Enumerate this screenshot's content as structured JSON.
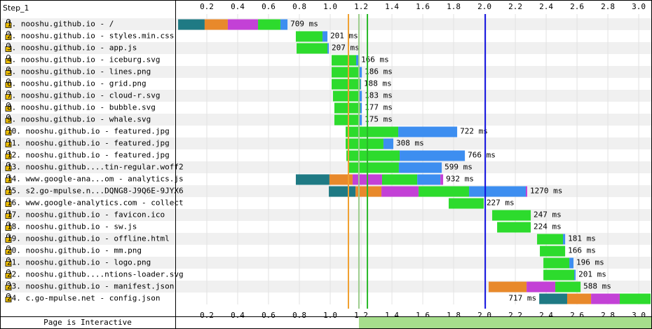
{
  "chart_data": {
    "type": "waterfall",
    "title": "Step_1",
    "xlim": [
      0,
      3.086
    ],
    "xticks": [
      0.2,
      0.4,
      0.6,
      0.8,
      {
        "value": 1,
        "label": "1.0"
      },
      1.2,
      1.4,
      1.6,
      1.8,
      {
        "value": 2,
        "label": "2.0"
      },
      2.2,
      2.4,
      2.6,
      2.8,
      {
        "value": 3,
        "label": "3.0"
      }
    ],
    "grid": true,
    "rows": [
      {
        "label": "1. nooshu.github.io - /",
        "segments": [
          {
            "start": 0.014,
            "end": 0.186,
            "color": "#1f7a84"
          },
          {
            "start": 0.186,
            "end": 0.336,
            "color": "#e8892b"
          },
          {
            "start": 0.336,
            "end": 0.532,
            "color": "#c341d6"
          },
          {
            "start": 0.532,
            "end": 0.677,
            "color": "#2ddb2d"
          },
          {
            "start": 0.677,
            "end": 0.723,
            "color": "#3d8ef0"
          }
        ]
      },
      {
        "label": "2. nooshu.github.io - styles.min.css",
        "segments": [
          {
            "start": 0.777,
            "end": 0.95,
            "color": "#2ddb2d"
          },
          {
            "start": 0.95,
            "end": 0.982,
            "color": "#3d8ef0"
          }
        ]
      },
      {
        "label": "3. nooshu.github.io - app.js",
        "segments": [
          {
            "start": 0.782,
            "end": 0.982,
            "color": "#2ddb2d"
          },
          {
            "start": 0.982,
            "end": 0.991,
            "color": "#3d8ef0"
          }
        ]
      },
      {
        "label": "4. nooshu.github.io - iceburg.svg",
        "segments": [
          {
            "start": 1.009,
            "end": 1.168,
            "color": "#2ddb2d"
          },
          {
            "start": 1.168,
            "end": 1.182,
            "color": "#3d8ef0"
          }
        ]
      },
      {
        "label": "5. nooshu.github.io - lines.png",
        "segments": [
          {
            "start": 1.009,
            "end": 1.182,
            "color": "#2ddb2d"
          },
          {
            "start": 1.182,
            "end": 1.205,
            "color": "#3d8ef0"
          }
        ]
      },
      {
        "label": "6. nooshu.github.io - grid.png",
        "segments": [
          {
            "start": 1.009,
            "end": 1.195,
            "color": "#2ddb2d"
          },
          {
            "start": 1.195,
            "end": 1.2,
            "color": "#3d8ef0"
          }
        ]
      },
      {
        "label": "7. nooshu.github.io - cloud-r.svg",
        "segments": [
          {
            "start": 1.018,
            "end": 1.186,
            "color": "#2ddb2d"
          },
          {
            "start": 1.186,
            "end": 1.205,
            "color": "#3d8ef0"
          }
        ]
      },
      {
        "label": "8. nooshu.github.io - bubble.svg",
        "segments": [
          {
            "start": 1.027,
            "end": 1.195,
            "color": "#2ddb2d"
          },
          {
            "start": 1.195,
            "end": 1.205,
            "color": "#3d8ef0"
          }
        ]
      },
      {
        "label": "9. nooshu.github.io - whale.svg",
        "segments": [
          {
            "start": 1.027,
            "end": 1.191,
            "color": "#2ddb2d"
          },
          {
            "start": 1.191,
            "end": 1.205,
            "color": "#3d8ef0"
          }
        ]
      },
      {
        "label": "10. nooshu.github.io - featured.jpg",
        "segments": [
          {
            "start": 1.1,
            "end": 1.441,
            "color": "#2ddb2d"
          },
          {
            "start": 1.441,
            "end": 1.823,
            "color": "#3d8ef0"
          }
        ]
      },
      {
        "label": "11. nooshu.github.io - featured.jpg",
        "segments": [
          {
            "start": 1.1,
            "end": 1.345,
            "color": "#2ddb2d"
          },
          {
            "start": 1.345,
            "end": 1.409,
            "color": "#3d8ef0"
          }
        ]
      },
      {
        "label": "12. nooshu.github.io - featured.jpg",
        "segments": [
          {
            "start": 1.105,
            "end": 1.45,
            "color": "#2ddb2d"
          },
          {
            "start": 1.45,
            "end": 1.873,
            "color": "#3d8ef0"
          }
        ]
      },
      {
        "label": "13. nooshu.github....tin-regular.woff2",
        "segments": [
          {
            "start": 1.118,
            "end": 1.445,
            "color": "#2ddb2d"
          },
          {
            "start": 1.445,
            "end": 1.723,
            "color": "#3d8ef0"
          }
        ]
      },
      {
        "label": "14. www.google-ana...om - analytics.js",
        "segments": [
          {
            "start": 0.777,
            "end": 0.995,
            "color": "#1f7a84"
          },
          {
            "start": 0.995,
            "end": 1.145,
            "color": "#e8892b"
          },
          {
            "start": 1.145,
            "end": 1.336,
            "color": "#c341d6"
          },
          {
            "start": 1.336,
            "end": 1.564,
            "color": "#2ddb2d"
          },
          {
            "start": 1.564,
            "end": 1.714,
            "color": "#3d8ef0"
          },
          {
            "start": 1.714,
            "end": 1.732,
            "color": "#c341d6"
          }
        ]
      },
      {
        "label": "15. s2.go-mpulse.n...DQNG8-J9Q6E-9JYX6",
        "segments": [
          {
            "start": 0.991,
            "end": 1.164,
            "color": "#1f7a84"
          },
          {
            "start": 1.164,
            "end": 1.332,
            "color": "#e8892b"
          },
          {
            "start": 1.332,
            "end": 1.573,
            "color": "#c341d6"
          },
          {
            "start": 1.573,
            "end": 1.9,
            "color": "#2ddb2d"
          },
          {
            "start": 1.9,
            "end": 2.268,
            "color": "#3d8ef0"
          },
          {
            "start": 2.268,
            "end": 2.277,
            "color": "#c341d6"
          }
        ]
      },
      {
        "label": "16. www.google-analytics.com - collect",
        "segments": [
          {
            "start": 1.768,
            "end": 1.995,
            "color": "#2ddb2d"
          }
        ]
      },
      {
        "label": "17. nooshu.github.io - favicon.ico",
        "segments": [
          {
            "start": 2.05,
            "end": 2.3,
            "color": "#2ddb2d"
          }
        ]
      },
      {
        "label": "18. nooshu.github.io - sw.js",
        "segments": [
          {
            "start": 2.082,
            "end": 2.3,
            "color": "#2ddb2d"
          }
        ]
      },
      {
        "label": "19. nooshu.github.io - offline.html",
        "segments": [
          {
            "start": 2.341,
            "end": 2.509,
            "color": "#2ddb2d"
          },
          {
            "start": 2.509,
            "end": 2.523,
            "color": "#3d8ef0"
          }
        ]
      },
      {
        "label": "20. nooshu.github.io - mm.png",
        "segments": [
          {
            "start": 2.359,
            "end": 2.523,
            "color": "#2ddb2d"
          }
        ]
      },
      {
        "label": "21. nooshu.github.io - logo.png",
        "segments": [
          {
            "start": 2.382,
            "end": 2.55,
            "color": "#2ddb2d"
          },
          {
            "start": 2.55,
            "end": 2.577,
            "color": "#3d8ef0"
          }
        ]
      },
      {
        "label": "22. nooshu.github....ntions-loader.svg",
        "segments": [
          {
            "start": 2.382,
            "end": 2.582,
            "color": "#2ddb2d"
          },
          {
            "start": 2.582,
            "end": 2.591,
            "color": "#3d8ef0"
          }
        ]
      },
      {
        "label": "23. nooshu.github.io - manifest.json",
        "segments": [
          {
            "start": 2.027,
            "end": 2.273,
            "color": "#e8892b"
          },
          {
            "start": 2.273,
            "end": 2.459,
            "color": "#c341d6"
          },
          {
            "start": 2.459,
            "end": 2.623,
            "color": "#2ddb2d"
          }
        ]
      },
      {
        "label": "24. c.go-mpulse.net - config.json",
        "segments": [
          {
            "start": 2.355,
            "end": 2.536,
            "color": "#1f7a84"
          },
          {
            "start": 2.536,
            "end": 2.691,
            "color": "#e8892b"
          },
          {
            "start": 2.691,
            "end": 2.877,
            "color": "#c341d6"
          },
          {
            "start": 2.877,
            "end": 3.077,
            "color": "#2ddb2d"
          }
        ]
      }
    ],
    "values": [
      709,
      201,
      207,
      166,
      186,
      188,
      183,
      177,
      175,
      722,
      308,
      766,
      599,
      932,
      1270,
      227,
      247,
      224,
      181,
      166,
      196,
      201,
      588,
      717
    ],
    "value_labels": [
      "709 ms",
      "201 ms",
      "207 ms",
      "166 ms",
      "186 ms",
      "188 ms",
      "183 ms",
      "177 ms",
      "175 ms",
      "722 ms",
      "308 ms",
      "766 ms",
      "599 ms",
      "932 ms",
      "1270 ms",
      "227 ms",
      "247 ms",
      "224 ms",
      "181 ms",
      "166 ms",
      "196 ms",
      "201 ms",
      "588 ms",
      "717 ms"
    ],
    "markers": [
      {
        "value": 1.118,
        "color": "#f0a030"
      },
      {
        "value": 1.186,
        "color": "#9ccc8c"
      },
      {
        "value": 1.241,
        "color": "#28b828"
      },
      {
        "value": 2.005,
        "color": "#1010e0"
      }
    ],
    "interactive": {
      "label": "Page is Interactive",
      "start": 1.186,
      "end": 3.086,
      "color": "#a6de8c"
    }
  }
}
